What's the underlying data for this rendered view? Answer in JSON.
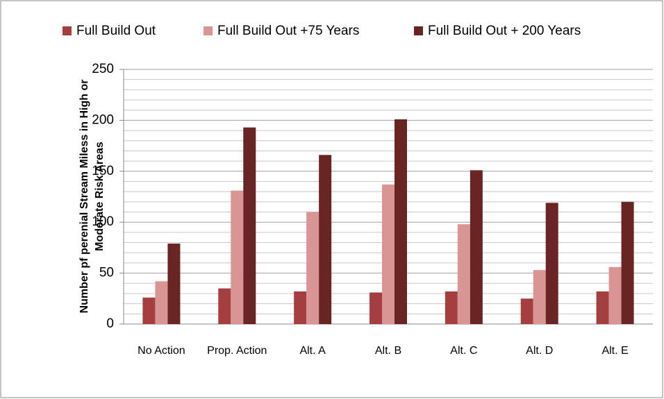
{
  "chart_data": {
    "type": "bar",
    "y_label": "Number pf perenial Stream Miless in High or Moderate Risk Areas",
    "categories": [
      "No Action",
      "Prop. Action",
      "Alt. A",
      "Alt. B",
      "Alt. C",
      "Alt. D",
      "Alt. E"
    ],
    "series": [
      {
        "name": "Full Build Out",
        "color": "#a53e3e",
        "values": [
          26,
          35,
          32,
          31,
          32,
          25,
          32
        ]
      },
      {
        "name": "Full Build Out +75 Years",
        "color": "#d99594",
        "values": [
          42,
          131,
          110,
          137,
          98,
          53,
          56
        ]
      },
      {
        "name": "Full Build Out + 200 Years",
        "color": "#6b2424",
        "values": [
          79,
          193,
          166,
          201,
          151,
          119,
          120
        ]
      }
    ],
    "ylim": [
      0,
      250
    ],
    "yticks": [
      0,
      50,
      100,
      150,
      200,
      250
    ],
    "minor_yticks": [
      10,
      20,
      30,
      40,
      60,
      70,
      80,
      90,
      110,
      120,
      130,
      140,
      160,
      170,
      180,
      190,
      210,
      220,
      230,
      240
    ],
    "grid": true,
    "legend": "top"
  }
}
